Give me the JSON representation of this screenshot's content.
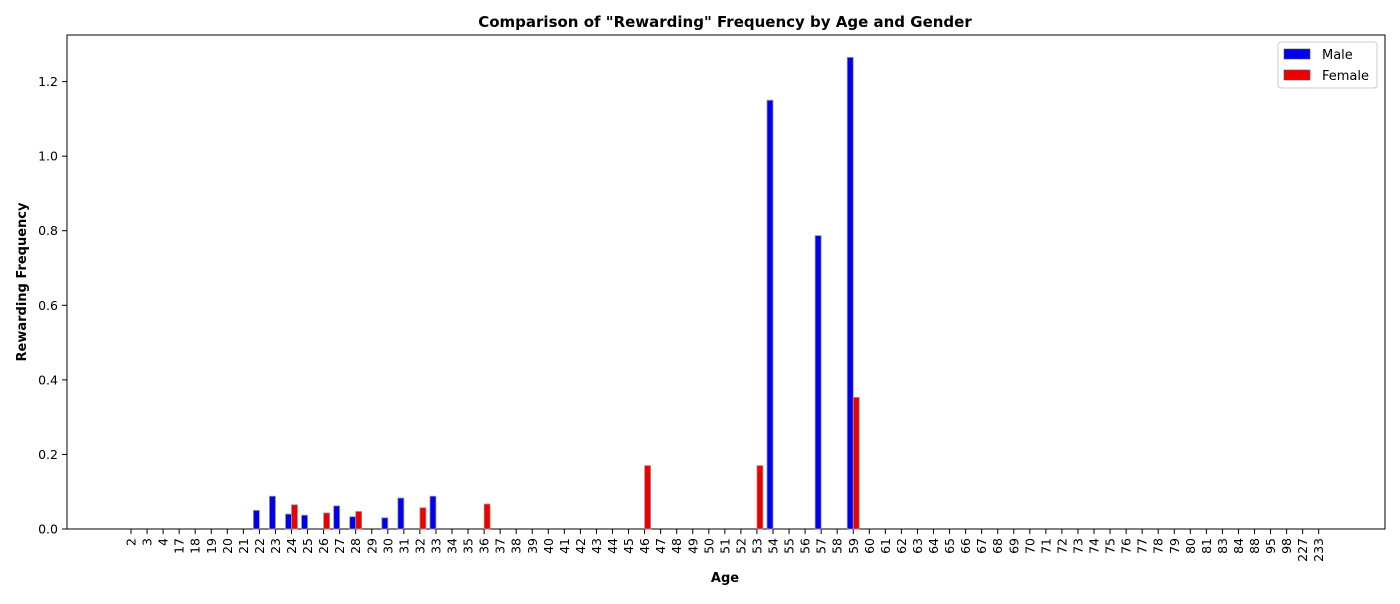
{
  "chart_data": {
    "type": "bar",
    "title": "Comparison of \"Rewarding\" Frequency by Age and Gender",
    "xlabel": "Age",
    "ylabel": "Rewarding Frequency",
    "ylim": [
      0,
      1.325
    ],
    "yticks": [
      "0.0",
      "0.2",
      "0.4",
      "0.6",
      "0.8",
      "1.0",
      "1.2"
    ],
    "grid": false,
    "legend_position": "top-right",
    "categories": [
      "2",
      "3",
      "4",
      "17",
      "18",
      "19",
      "20",
      "21",
      "22",
      "23",
      "24",
      "25",
      "26",
      "27",
      "28",
      "29",
      "30",
      "31",
      "32",
      "33",
      "34",
      "35",
      "36",
      "37",
      "38",
      "39",
      "40",
      "41",
      "42",
      "43",
      "44",
      "45",
      "46",
      "47",
      "48",
      "49",
      "50",
      "51",
      "52",
      "53",
      "54",
      "55",
      "56",
      "57",
      "58",
      "59",
      "60",
      "61",
      "62",
      "63",
      "64",
      "65",
      "66",
      "67",
      "68",
      "69",
      "70",
      "71",
      "72",
      "73",
      "74",
      "75",
      "76",
      "77",
      "78",
      "79",
      "80",
      "81",
      "83",
      "84",
      "88",
      "95",
      "98",
      "227",
      "233"
    ],
    "series": [
      {
        "name": "Male",
        "color": "#0000ee",
        "values": [
          0,
          0,
          0,
          0,
          0,
          0,
          0,
          0,
          0.05,
          0.088,
          0.04,
          0.037,
          0,
          0.062,
          0.033,
          0,
          0.03,
          0.083,
          0,
          0.088,
          0,
          0,
          0,
          0,
          0,
          0,
          0,
          0,
          0,
          0,
          0,
          0,
          0,
          0,
          0,
          0,
          0,
          0,
          0,
          0,
          1.15,
          0,
          0,
          0.787,
          0,
          1.265,
          0,
          0,
          0,
          0,
          0,
          0,
          0,
          0,
          0,
          0,
          0,
          0,
          0,
          0,
          0,
          0,
          0,
          0,
          0,
          0,
          0,
          0,
          0,
          0,
          0,
          0,
          0,
          0,
          0
        ]
      },
      {
        "name": "Female",
        "color": "#ee0000",
        "values": [
          0,
          0,
          0,
          0,
          0,
          0,
          0,
          0,
          0,
          0,
          0.065,
          0,
          0.043,
          0,
          0.047,
          0,
          0,
          0,
          0.057,
          0,
          0,
          0,
          0.067,
          0,
          0,
          0,
          0,
          0,
          0,
          0,
          0,
          0,
          0.17,
          0,
          0,
          0,
          0,
          0,
          0,
          0.17,
          0,
          0,
          0,
          0,
          0,
          0.353,
          0,
          0,
          0,
          0,
          0,
          0,
          0,
          0,
          0,
          0,
          0,
          0,
          0,
          0,
          0,
          0,
          0,
          0,
          0,
          0,
          0,
          0,
          0,
          0,
          0,
          0,
          0,
          0,
          0
        ]
      }
    ]
  }
}
